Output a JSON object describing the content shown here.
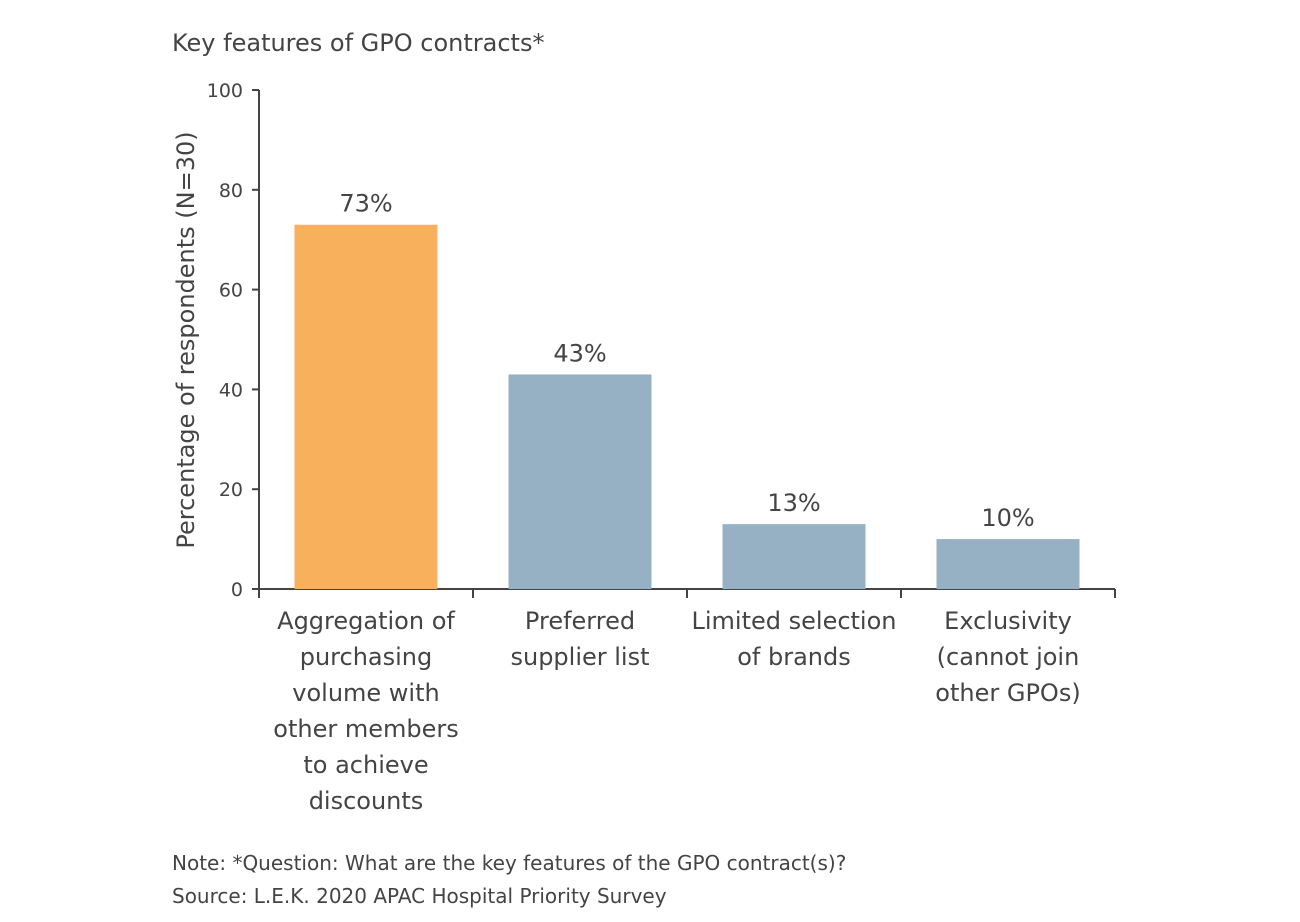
{
  "chart_data": {
    "type": "bar",
    "title": "Key features of GPO contracts*",
    "xlabel": "",
    "ylabel": "Percentage of respondents (N=30)",
    "ylim": [
      0,
      100
    ],
    "yticks": [
      0,
      20,
      40,
      60,
      80,
      100
    ],
    "grid": false,
    "categories": [
      [
        "Aggregation of",
        "purchasing",
        "volume with",
        "other members",
        "to achieve",
        "discounts"
      ],
      [
        "Preferred",
        "supplier list"
      ],
      [
        "Limited selection",
        "of brands"
      ],
      [
        "Exclusivity",
        "(cannot join",
        "other GPOs)"
      ]
    ],
    "values": [
      73,
      43,
      13,
      10
    ],
    "data_labels": [
      "73%",
      "43%",
      "13%",
      "10%"
    ],
    "colors": [
      "#F9B05C",
      "#97B1C4",
      "#97B1C4",
      "#97B1C4"
    ]
  },
  "notes": {
    "note": "Note: *Question: What are the key features of the GPO contract(s)?",
    "source": "Source: L.E.K. 2020 APAC Hospital Priority Survey"
  }
}
